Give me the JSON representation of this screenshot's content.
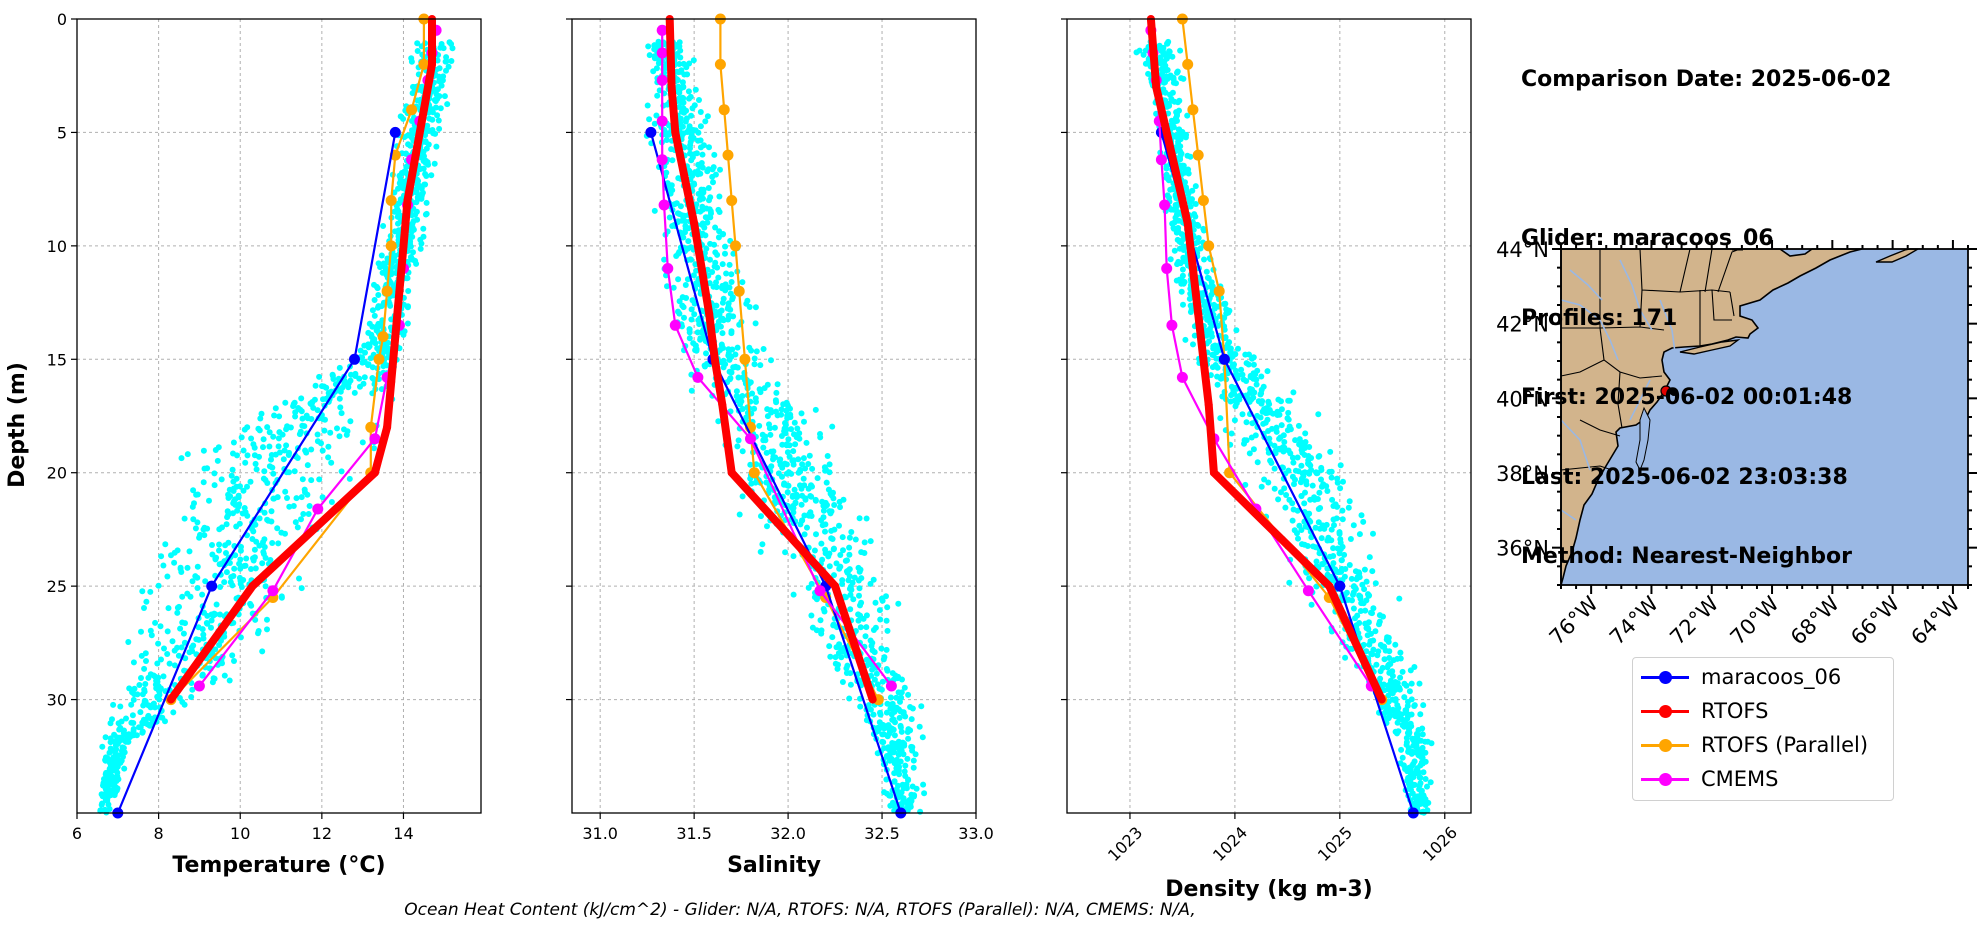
{
  "info": {
    "comparison": "Comparison Date: 2025-06-02",
    "glider": "Glider: maracoos_06",
    "profiles": "Profiles: 171",
    "first": "First: 2025-06-02 00:01:48",
    "last": "Last: 2025-06-02 23:03:38",
    "method": "Method: Nearest-Neighbor"
  },
  "footer": "Ocean Heat Content (kJ/cm^2) - Glider: N/A,  RTOFS: N/A,  RTOFS (Parallel): N/A,  CMEMS: N/A,",
  "colors": {
    "glider": "#0000ff",
    "rtofs": "#ff0000",
    "rtofs_parallel": "#ffa500",
    "cmems": "#ff00ff",
    "scatter": "#00ffff",
    "land": "#d2b48c",
    "ocean": "#9ab8e4"
  },
  "legend": [
    {
      "label": "maracoos_06",
      "color": "#0000ff"
    },
    {
      "label": "RTOFS",
      "color": "#ff0000"
    },
    {
      "label": "RTOFS (Parallel)",
      "color": "#ffa500"
    },
    {
      "label": "CMEMS",
      "color": "#ff00ff"
    }
  ],
  "chart_data": [
    {
      "type": "line",
      "xlabel": "Temperature (°C)",
      "ylabel": "Depth (m)",
      "xlim": [
        6,
        15.9
      ],
      "ylim": [
        35,
        0
      ],
      "xticks": [
        6,
        8,
        10,
        12,
        14
      ],
      "yticks": [
        0,
        5,
        10,
        15,
        20,
        25,
        30
      ],
      "grid": true,
      "scatter_envelope": {
        "name": "glider profiles",
        "depth": [
          1,
          5,
          10,
          15,
          18,
          20,
          22,
          25,
          28,
          30,
          32,
          35
        ],
        "min": [
          14.0,
          13.7,
          13.3,
          12.5,
          9.0,
          7.8,
          7.5,
          7.0,
          6.8,
          6.6,
          6.5,
          6.4
        ],
        "max": [
          15.6,
          15.1,
          14.6,
          14.2,
          13.8,
          13.4,
          12.6,
          12.2,
          11.0,
          9.5,
          7.5,
          6.9
        ]
      },
      "series": [
        {
          "name": "maracoos_06",
          "x": [
            13.8,
            12.8,
            9.3,
            7.0
          ],
          "depth": [
            5,
            15,
            25,
            35
          ]
        },
        {
          "name": "RTOFS",
          "x": [
            14.7,
            14.7,
            14.5,
            14.3,
            14.1,
            14.0,
            13.9,
            13.8,
            13.7,
            13.6,
            13.3,
            10.3,
            8.3
          ],
          "depth": [
            0,
            2,
            4,
            6,
            8,
            10,
            12,
            14,
            16,
            18,
            20,
            25,
            30
          ]
        },
        {
          "name": "RTOFS (Parallel)",
          "x": [
            14.5,
            14.5,
            14.2,
            13.8,
            13.7,
            13.7,
            13.6,
            13.5,
            13.4,
            13.2,
            13.2,
            10.8,
            8.3
          ],
          "depth": [
            0,
            2,
            4,
            6,
            8,
            10,
            12,
            14,
            15,
            18,
            20,
            25.5,
            30
          ]
        },
        {
          "name": "CMEMS",
          "x": [
            14.8,
            14.7,
            14.6,
            14.4,
            14.2,
            14.1,
            14.0,
            13.9,
            13.6,
            13.3,
            11.9,
            10.8,
            9.0
          ],
          "depth": [
            0.5,
            1.5,
            2.7,
            4.5,
            6.2,
            8.2,
            11,
            13.5,
            15.8,
            18.5,
            21.6,
            25.2,
            29.4
          ]
        }
      ]
    },
    {
      "type": "line",
      "xlabel": "Salinity",
      "xlim": [
        30.85,
        33.0
      ],
      "ylim": [
        35,
        0
      ],
      "xticks": [
        31.0,
        31.5,
        32.0,
        32.5,
        33.0
      ],
      "yticks": [
        0,
        5,
        10,
        15,
        20,
        25,
        30
      ],
      "grid": true,
      "scatter_envelope": {
        "name": "glider profiles",
        "depth": [
          1,
          5,
          10,
          14,
          16,
          18,
          20,
          22,
          25,
          28,
          30,
          32,
          35
        ],
        "min": [
          31.2,
          31.2,
          31.25,
          31.3,
          31.4,
          31.5,
          31.6,
          31.7,
          31.9,
          32.1,
          32.3,
          32.4,
          32.5
        ],
        "max": [
          31.5,
          31.65,
          31.8,
          31.9,
          32.1,
          32.3,
          32.4,
          32.5,
          32.65,
          32.7,
          32.75,
          32.75,
          32.75
        ]
      },
      "series": [
        {
          "name": "maracoos_06",
          "x": [
            31.27,
            31.6,
            32.2,
            32.6
          ],
          "depth": [
            5,
            15,
            25,
            35
          ]
        },
        {
          "name": "RTOFS",
          "x": [
            31.37,
            31.38,
            31.4,
            31.45,
            31.5,
            31.54,
            31.58,
            31.61,
            31.65,
            31.7,
            32.25,
            32.45
          ],
          "depth": [
            0,
            3,
            5,
            7,
            9,
            11,
            13,
            15,
            17,
            20,
            25,
            30
          ]
        },
        {
          "name": "RTOFS (Parallel)",
          "x": [
            31.64,
            31.64,
            31.66,
            31.68,
            31.7,
            31.72,
            31.74,
            31.77,
            31.8,
            31.82,
            32.2,
            32.48
          ],
          "depth": [
            0,
            2,
            4,
            6,
            8,
            10,
            12,
            15,
            18,
            20,
            25.5,
            30
          ]
        },
        {
          "name": "CMEMS",
          "x": [
            31.33,
            31.33,
            31.33,
            31.33,
            31.33,
            31.34,
            31.36,
            31.4,
            31.52,
            31.8,
            32.17,
            32.55
          ],
          "depth": [
            0.5,
            1.5,
            2.7,
            4.5,
            6.2,
            8.2,
            11,
            13.5,
            15.8,
            18.5,
            25.2,
            29.4
          ]
        }
      ]
    },
    {
      "type": "line",
      "xlabel": "Density (kg m-3)",
      "xlim": [
        1022.4,
        1026.25
      ],
      "ylim": [
        35,
        0
      ],
      "xticks": [
        1023,
        1024,
        1025,
        1026
      ],
      "yticks": [
        0,
        5,
        10,
        15,
        20,
        25,
        30
      ],
      "grid": true,
      "scatter_envelope": {
        "name": "glider profiles",
        "depth": [
          1,
          5,
          10,
          14,
          16,
          18,
          20,
          22,
          25,
          28,
          30,
          32,
          35
        ],
        "min": [
          1023.0,
          1023.2,
          1023.3,
          1023.4,
          1023.6,
          1023.8,
          1024.0,
          1024.2,
          1024.5,
          1024.9,
          1025.2,
          1025.5,
          1025.6
        ],
        "max": [
          1023.5,
          1023.6,
          1023.8,
          1024.2,
          1024.6,
          1024.9,
          1025.2,
          1025.4,
          1025.6,
          1025.8,
          1025.85,
          1025.9,
          1025.9
        ]
      },
      "series": [
        {
          "name": "maracoos_06",
          "x": [
            1023.3,
            1023.9,
            1025.0,
            1025.7
          ],
          "depth": [
            5,
            15,
            25,
            35
          ]
        },
        {
          "name": "RTOFS",
          "x": [
            1023.2,
            1023.25,
            1023.35,
            1023.45,
            1023.55,
            1023.6,
            1023.65,
            1023.7,
            1023.75,
            1023.8,
            1024.9,
            1025.4
          ],
          "depth": [
            0,
            3,
            5,
            7,
            9,
            11,
            13,
            15,
            17,
            20,
            25,
            30
          ]
        },
        {
          "name": "RTOFS (Parallel)",
          "x": [
            1023.5,
            1023.55,
            1023.6,
            1023.65,
            1023.7,
            1023.75,
            1023.85,
            1023.9,
            1023.95,
            1024.9,
            1025.4
          ],
          "depth": [
            0,
            2,
            4,
            6,
            8,
            10,
            12,
            15,
            20,
            25.5,
            30
          ]
        },
        {
          "name": "CMEMS",
          "x": [
            1023.2,
            1023.22,
            1023.25,
            1023.28,
            1023.3,
            1023.33,
            1023.35,
            1023.4,
            1023.5,
            1023.8,
            1024.2,
            1024.7,
            1025.3
          ],
          "depth": [
            0.5,
            1.5,
            2.7,
            4.5,
            6.2,
            8.2,
            11,
            13.5,
            15.8,
            18.5,
            21.6,
            25.2,
            29.4
          ]
        }
      ]
    },
    {
      "type": "map",
      "lon_range": [
        -77,
        -63.5
      ],
      "lat_range": [
        35,
        44
      ],
      "xticks": [
        "76°W",
        "74°W",
        "72°W",
        "70°W",
        "68°W",
        "66°W",
        "64°W"
      ],
      "yticks": [
        "44°N",
        "42°N",
        "40°N",
        "38°N",
        "36°N"
      ],
      "marker": {
        "name": "maracoos_06",
        "lon": -73.6,
        "lat": 40.35
      }
    }
  ]
}
